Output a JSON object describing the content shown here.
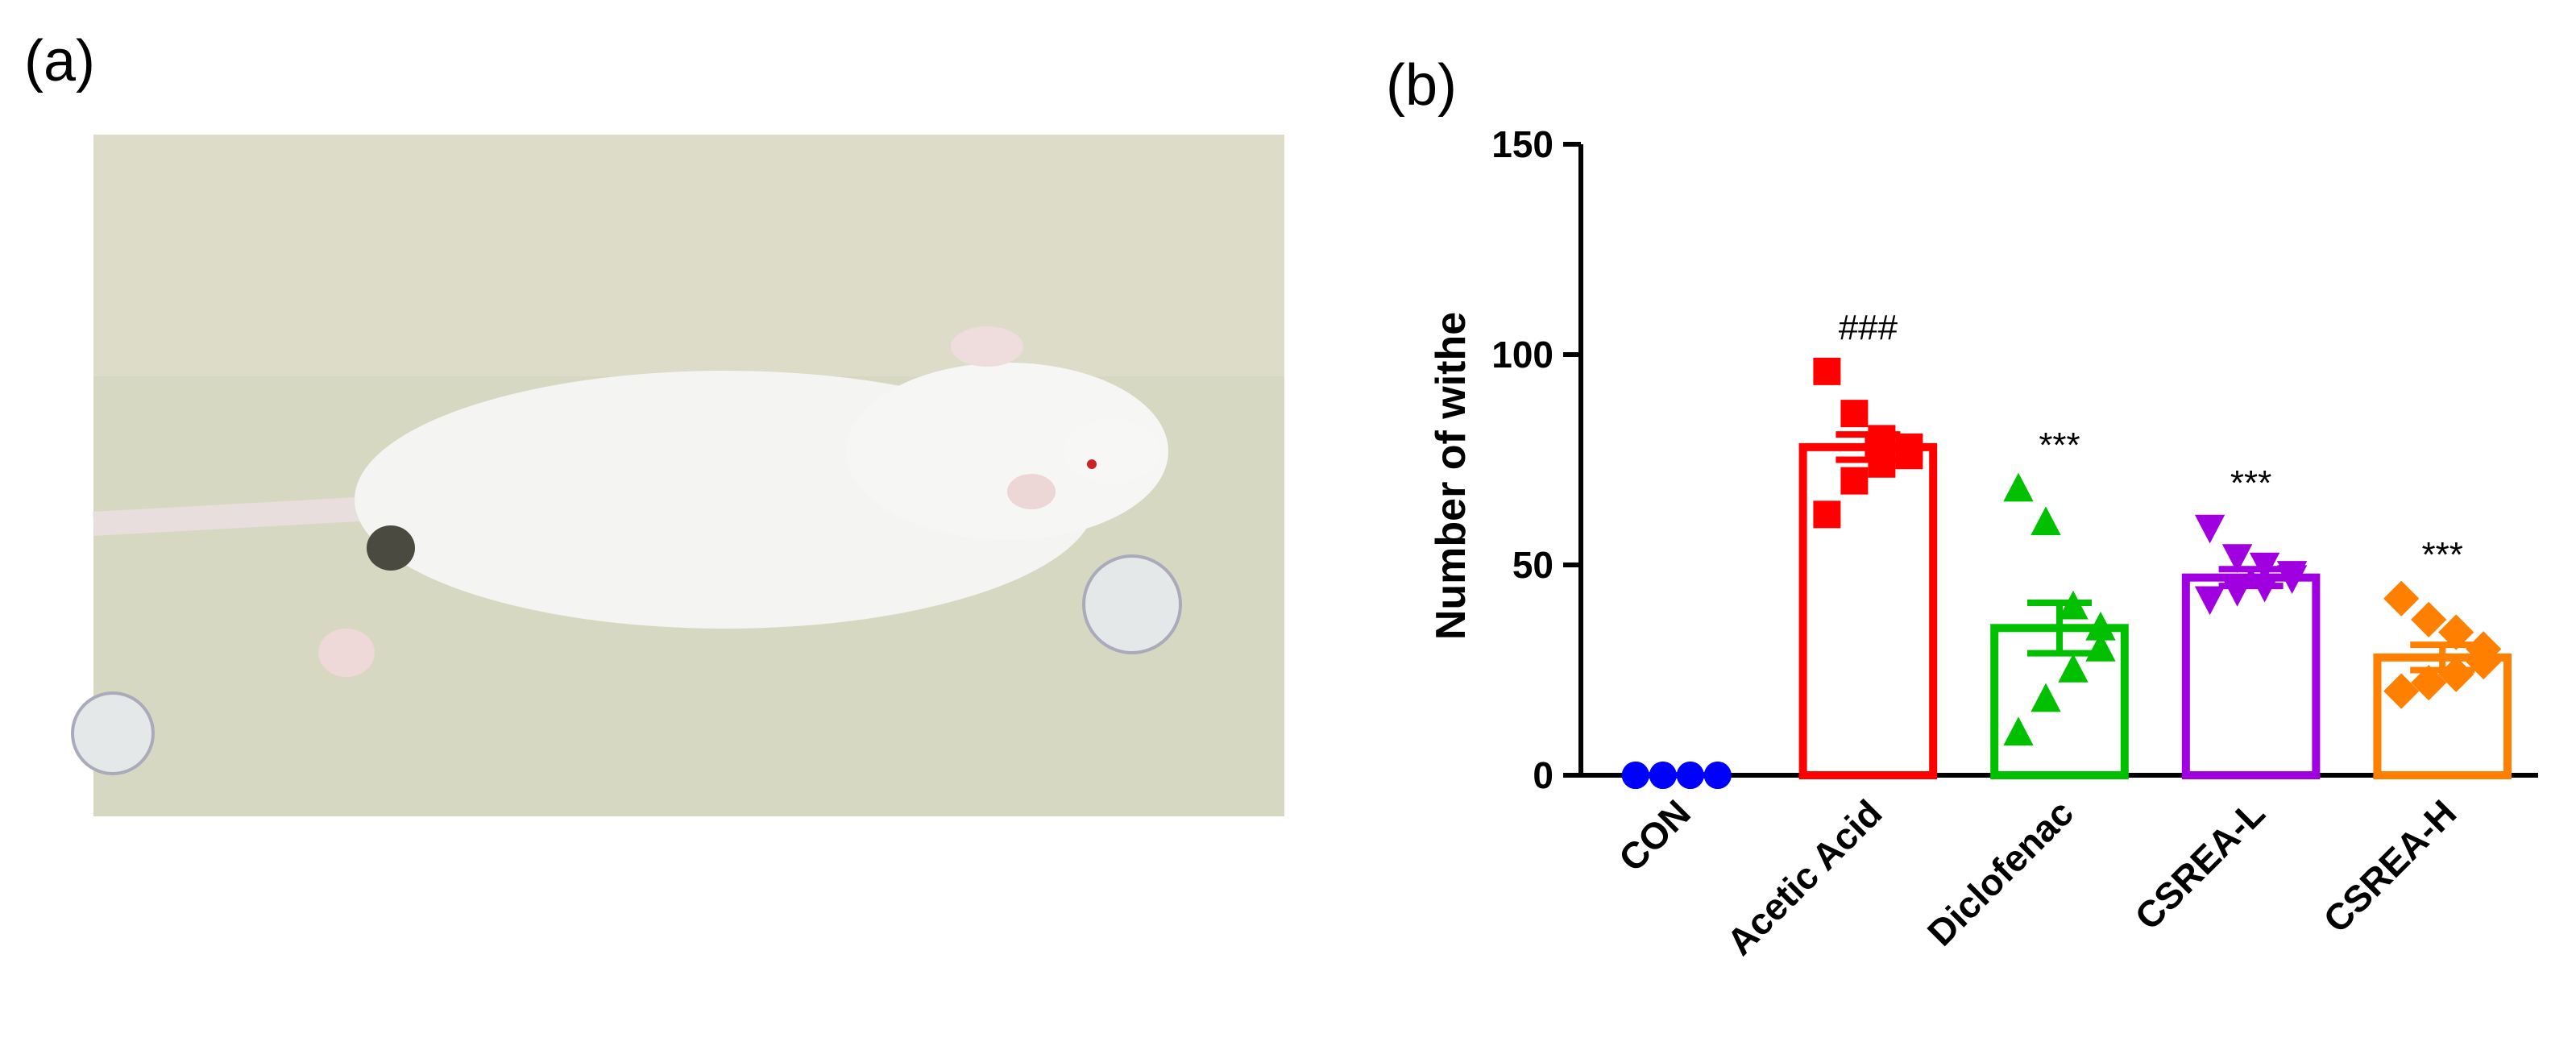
{
  "panels": {
    "a": {
      "label": "(a)"
    },
    "b": {
      "label": "(b)"
    }
  },
  "chart_data": {
    "type": "bar",
    "y_label": "Number of withe",
    "categories": [
      "CON",
      "Acetic Acid",
      "Diclofenac",
      "CSREA-L",
      "CSREA-H"
    ],
    "values": [
      0,
      78,
      35,
      47,
      28
    ],
    "errors": [
      0,
      3,
      6,
      2,
      3
    ],
    "points": [
      [
        0,
        0,
        0,
        0,
        0,
        0,
        0,
        0
      ],
      [
        96,
        86,
        80,
        78,
        76,
        74,
        70,
        62
      ],
      [
        68,
        60,
        40,
        35,
        30,
        25,
        18,
        10
      ],
      [
        59,
        52,
        50,
        48,
        47,
        45,
        44,
        42
      ],
      [
        42,
        37,
        34,
        30,
        27,
        24,
        22,
        20
      ]
    ],
    "colors": [
      "#0000ff",
      "#ff0000",
      "#00c000",
      "#a000e0",
      "#ff8000"
    ],
    "markers": [
      "circle",
      "square",
      "triangle-up",
      "triangle-down",
      "diamond"
    ],
    "annotations": [
      {
        "category": "Acetic Acid",
        "text": "###"
      },
      {
        "category": "Diclofenac",
        "text": "***"
      },
      {
        "category": "CSREA-L",
        "text": "***"
      },
      {
        "category": "CSREA-H",
        "text": "***"
      }
    ],
    "ylim": [
      0,
      150
    ],
    "yticks": [
      0,
      50,
      100,
      150
    ]
  }
}
